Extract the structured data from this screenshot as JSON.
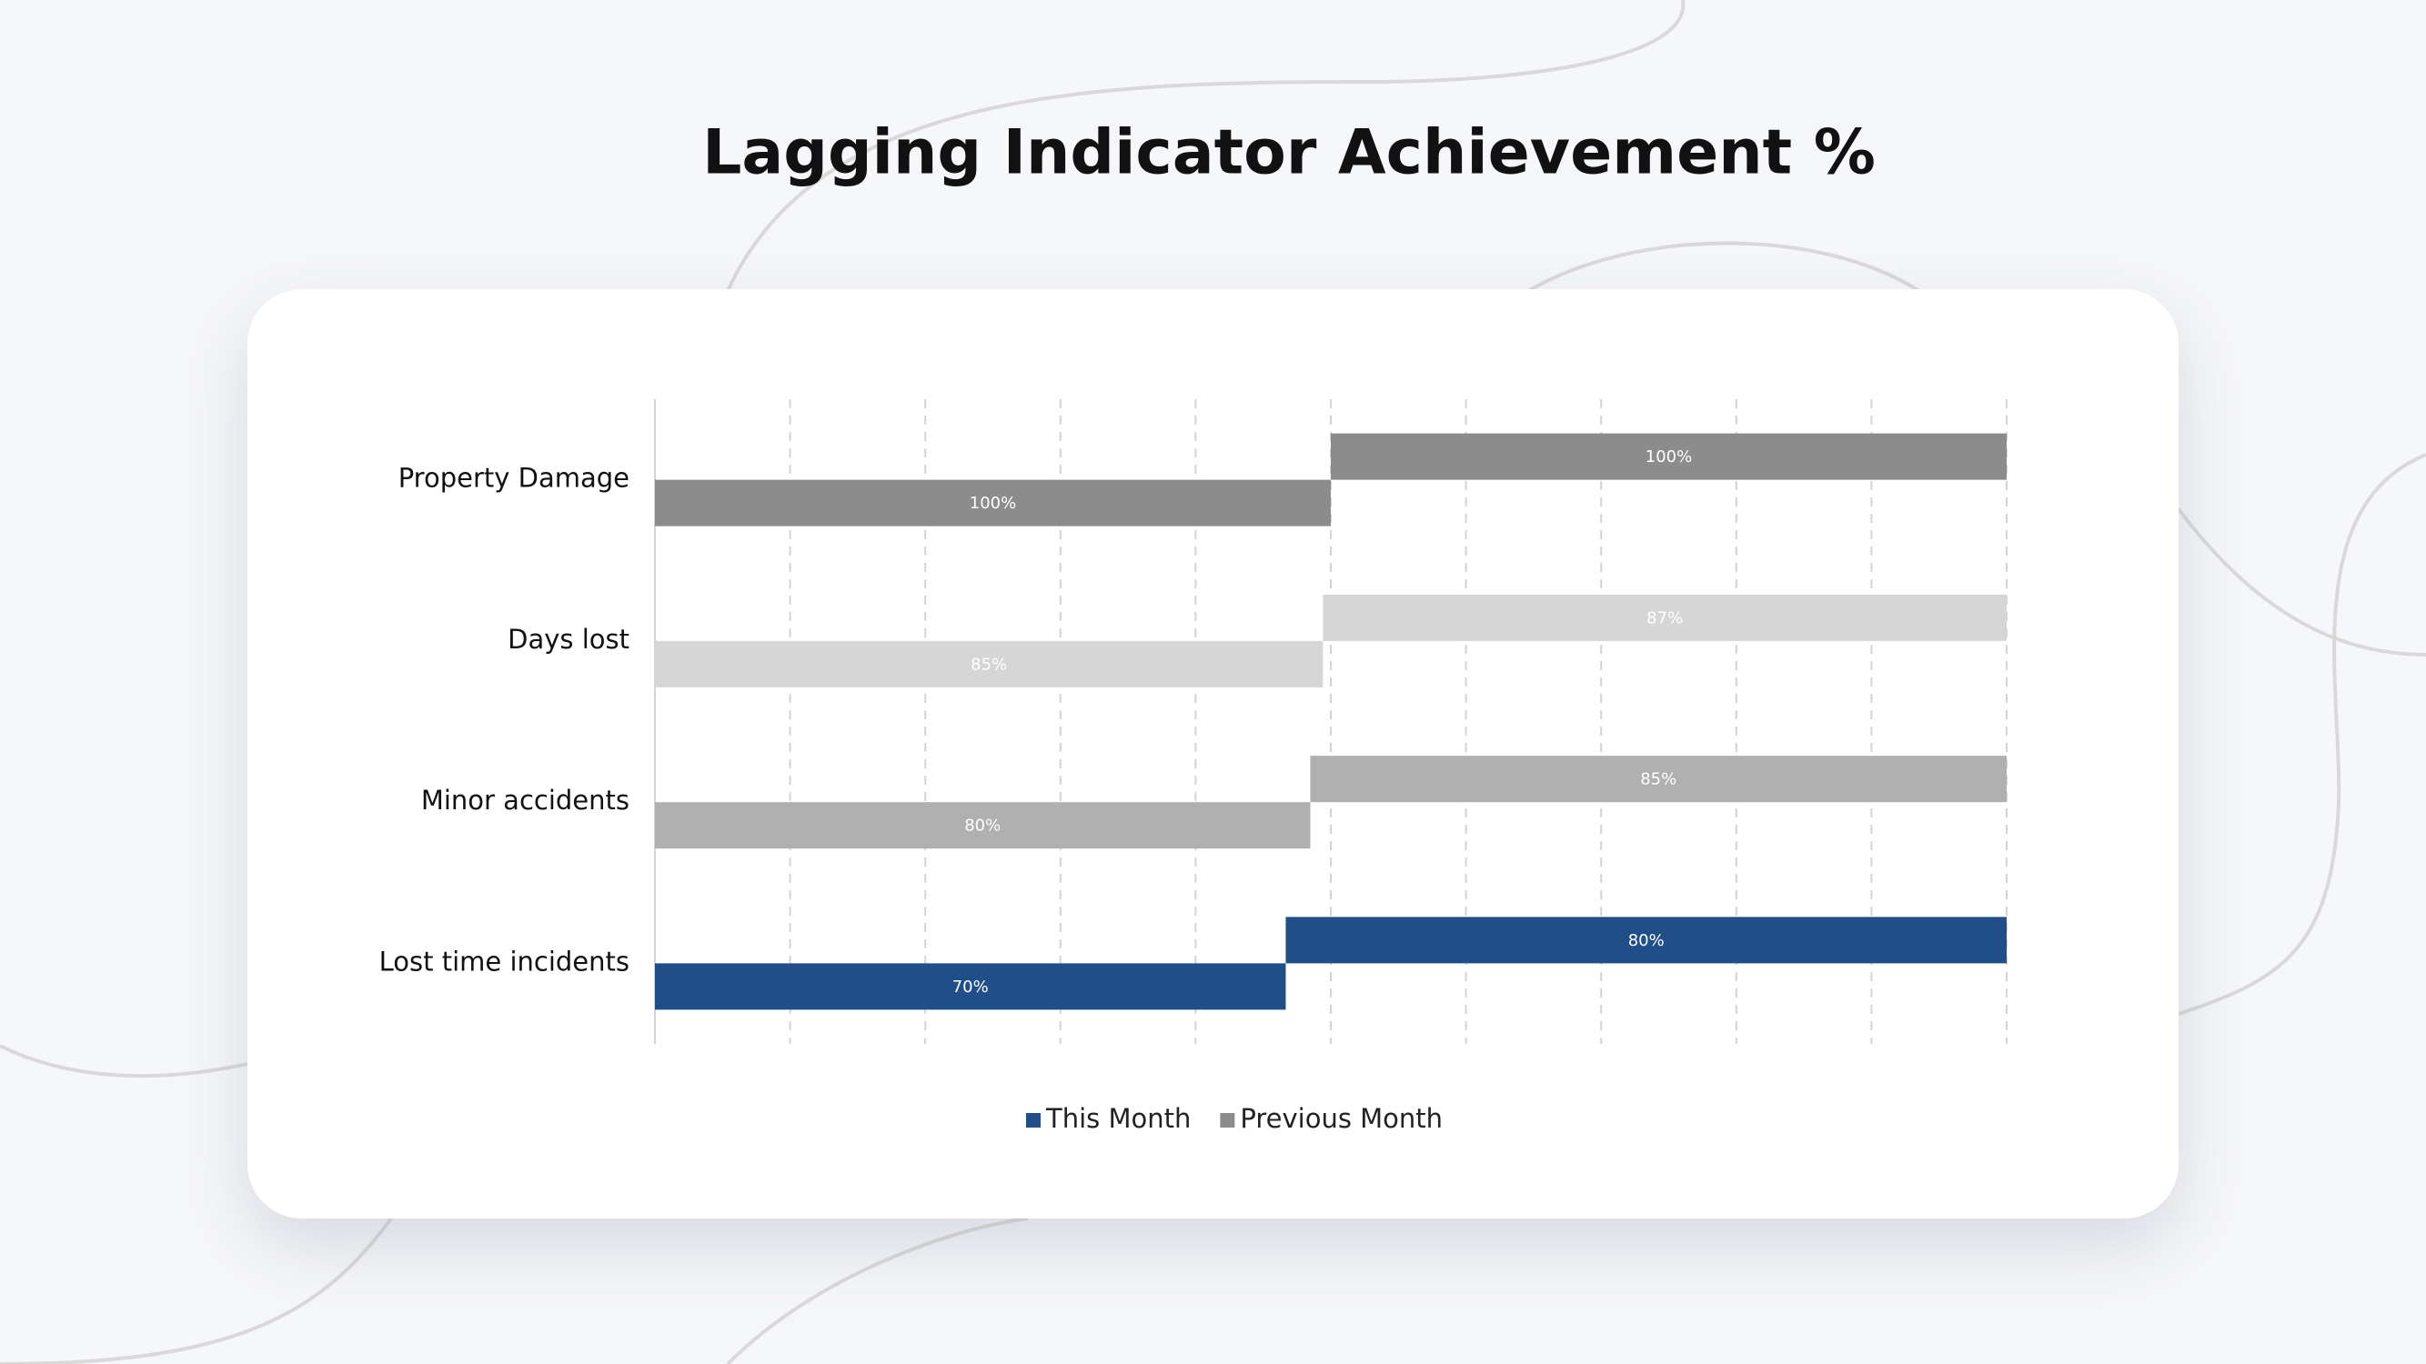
{
  "chart_data": {
    "type": "bar",
    "orientation": "horizontal",
    "stacking": "percent",
    "title": "Lagging Indicator Achievement %",
    "categories": [
      "Property Damage",
      "Days lost",
      "Minor accidents",
      "Lost time incidents"
    ],
    "series": [
      {
        "name": "This Month",
        "color": "#1f4e89",
        "point_colors": [
          "#8c8c8c",
          "#d6d6d6",
          "#b0b0b0",
          "#1f4e89"
        ],
        "values": [
          100,
          85,
          80,
          70
        ],
        "value_labels": [
          "100%",
          "85%",
          "80%",
          "70%"
        ]
      },
      {
        "name": "Previous Month",
        "color": "#8c8c8c",
        "point_colors": [
          "#8c8c8c",
          "#d6d6d6",
          "#b0b0b0",
          "#1f4e89"
        ],
        "values": [
          100,
          87,
          85,
          80
        ],
        "value_labels": [
          "100%",
          "87%",
          "85%",
          "80%"
        ]
      }
    ],
    "xlim": [
      0,
      100
    ],
    "xticks": [
      0,
      10,
      20,
      30,
      40,
      50,
      60,
      70,
      80,
      90,
      100
    ],
    "grid": true,
    "legend": "bottom"
  }
}
